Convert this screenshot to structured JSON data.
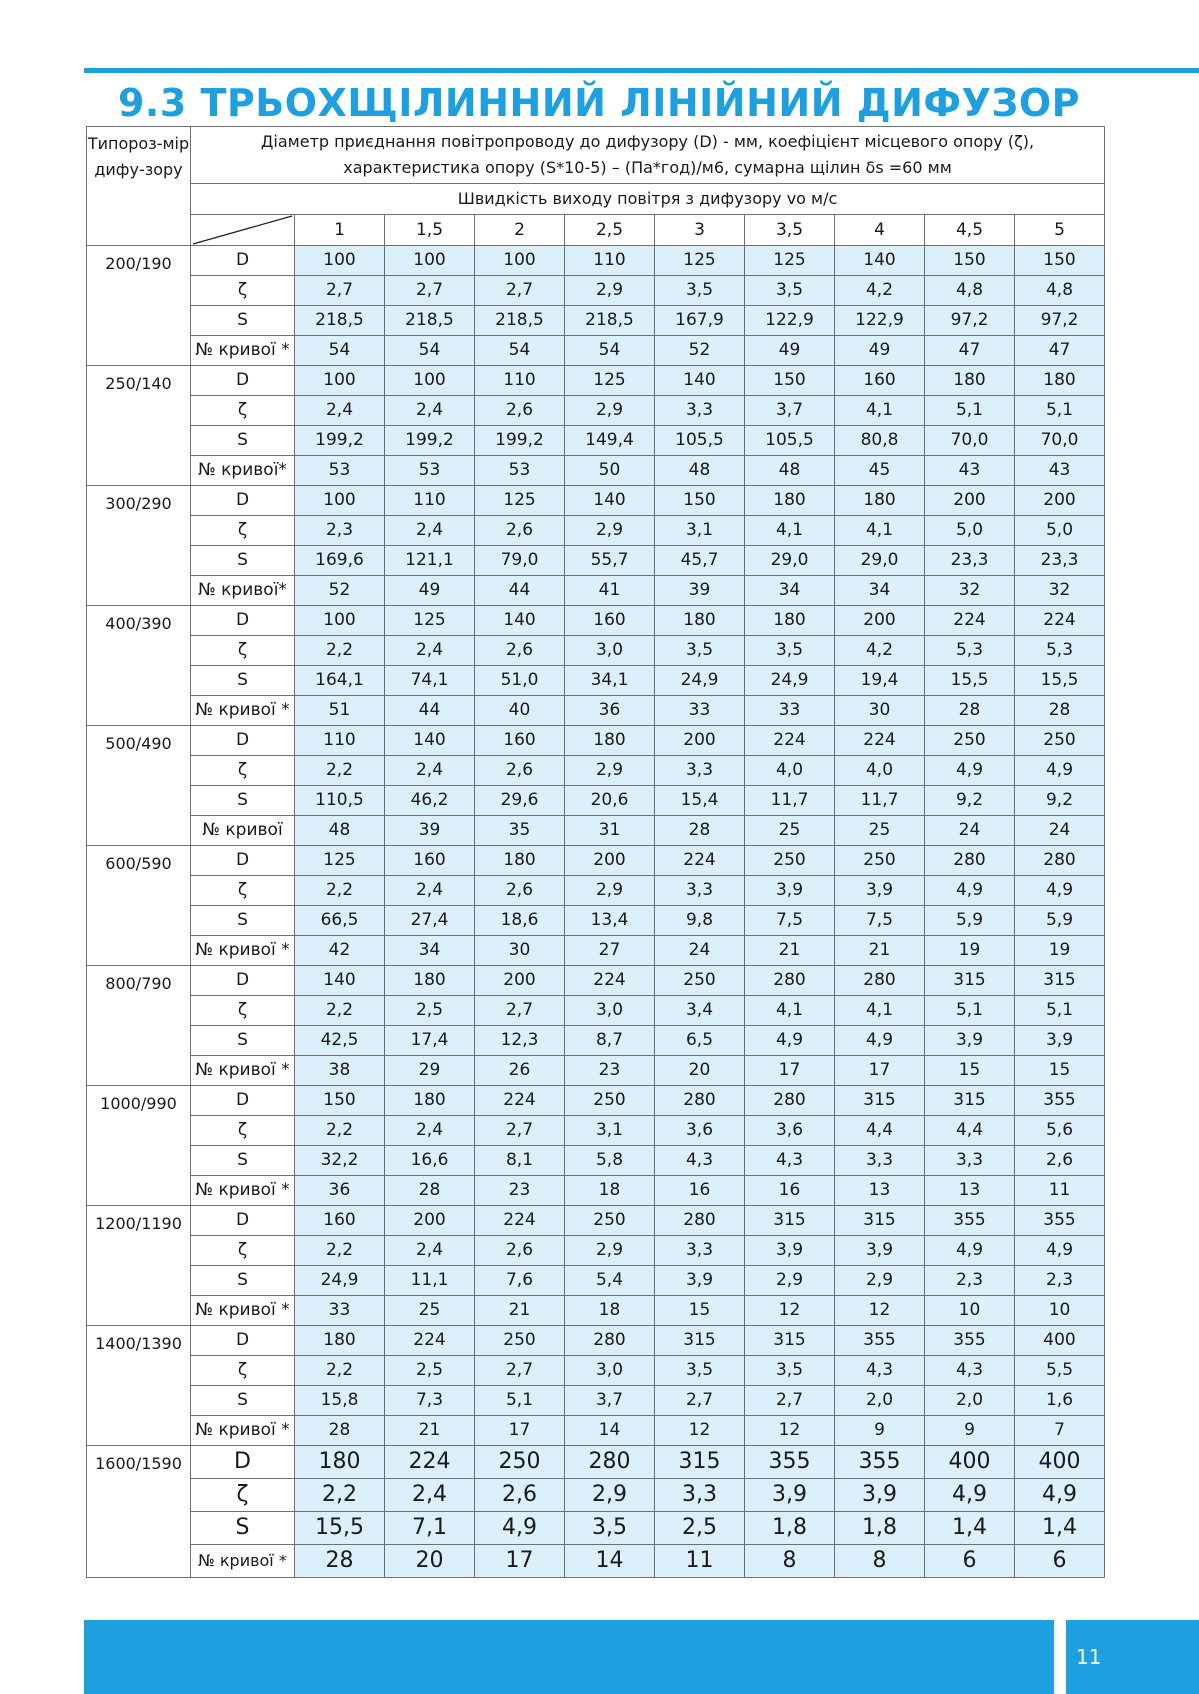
{
  "page": {
    "title": "9.3 ТРЬОХЩІЛИННИЙ ЛІНІЙНИЙ ДИФУЗОР",
    "page_number": "11",
    "accent_color": "#1ea0e0",
    "cell_fill": "#dcf0fb"
  },
  "table": {
    "type_header": "Типороз-мір дифу-зору",
    "description_line1": "Діаметр приєднання повітропроводу до дифузору (D) - мм, коефіцієнт місцевого опору (ζ),",
    "description_line2": "характеристика опору (S*10-5) – (Па*год)/м6, сумарна щілин δs =60 мм",
    "speed_header": "Швидкість виходу повітря з дифузору vo м/с",
    "speeds": [
      "1",
      "1,5",
      "2",
      "2,5",
      "3",
      "3,5",
      "4",
      "4,5",
      "5"
    ],
    "groups": [
      {
        "type": "200/190",
        "rows": [
          {
            "param": "D",
            "values": [
              "100",
              "100",
              "100",
              "110",
              "125",
              "125",
              "140",
              "150",
              "150"
            ]
          },
          {
            "param": "ζ",
            "values": [
              "2,7",
              "2,7",
              "2,7",
              "2,9",
              "3,5",
              "3,5",
              "4,2",
              "4,8",
              "4,8"
            ]
          },
          {
            "param": "S",
            "values": [
              "218,5",
              "218,5",
              "218,5",
              "218,5",
              "167,9",
              "122,9",
              "122,9",
              "97,2",
              "97,2"
            ]
          },
          {
            "param": "№ кривої *",
            "values": [
              "54",
              "54",
              "54",
              "54",
              "52",
              "49",
              "49",
              "47",
              "47"
            ]
          }
        ]
      },
      {
        "type": "250/140",
        "rows": [
          {
            "param": "D",
            "values": [
              "100",
              "100",
              "110",
              "125",
              "140",
              "150",
              "160",
              "180",
              "180"
            ]
          },
          {
            "param": "ζ",
            "values": [
              "2,4",
              "2,4",
              "2,6",
              "2,9",
              "3,3",
              "3,7",
              "4,1",
              "5,1",
              "5,1"
            ]
          },
          {
            "param": "S",
            "values": [
              "199,2",
              "199,2",
              "199,2",
              "149,4",
              "105,5",
              "105,5",
              "80,8",
              "70,0",
              "70,0"
            ]
          },
          {
            "param": "№ кривої*",
            "values": [
              "53",
              "53",
              "53",
              "50",
              "48",
              "48",
              "45",
              "43",
              "43"
            ]
          }
        ]
      },
      {
        "type": "300/290",
        "rows": [
          {
            "param": "D",
            "values": [
              "100",
              "110",
              "125",
              "140",
              "150",
              "180",
              "180",
              "200",
              "200"
            ]
          },
          {
            "param": "ζ",
            "values": [
              "2,3",
              "2,4",
              "2,6",
              "2,9",
              "3,1",
              "4,1",
              "4,1",
              "5,0",
              "5,0"
            ]
          },
          {
            "param": "S",
            "values": [
              "169,6",
              "121,1",
              "79,0",
              "55,7",
              "45,7",
              "29,0",
              "29,0",
              "23,3",
              "23,3"
            ]
          },
          {
            "param": "№ кривої*",
            "values": [
              "52",
              "49",
              "44",
              "41",
              "39",
              "34",
              "34",
              "32",
              "32"
            ]
          }
        ]
      },
      {
        "type": "400/390",
        "rows": [
          {
            "param": "D",
            "values": [
              "100",
              "125",
              "140",
              "160",
              "180",
              "180",
              "200",
              "224",
              "224"
            ]
          },
          {
            "param": "ζ",
            "values": [
              "2,2",
              "2,4",
              "2,6",
              "3,0",
              "3,5",
              "3,5",
              "4,2",
              "5,3",
              "5,3"
            ]
          },
          {
            "param": "S",
            "values": [
              "164,1",
              "74,1",
              "51,0",
              "34,1",
              "24,9",
              "24,9",
              "19,4",
              "15,5",
              "15,5"
            ]
          },
          {
            "param": "№ кривої *",
            "values": [
              "51",
              "44",
              "40",
              "36",
              "33",
              "33",
              "30",
              "28",
              "28"
            ]
          }
        ]
      },
      {
        "type": "500/490",
        "rows": [
          {
            "param": "D",
            "values": [
              "110",
              "140",
              "160",
              "180",
              "200",
              "224",
              "224",
              "250",
              "250"
            ]
          },
          {
            "param": "ζ",
            "values": [
              "2,2",
              "2,4",
              "2,6",
              "2,9",
              "3,3",
              "4,0",
              "4,0",
              "4,9",
              "4,9"
            ]
          },
          {
            "param": "S",
            "values": [
              "110,5",
              "46,2",
              "29,6",
              "20,6",
              "15,4",
              "11,7",
              "11,7",
              "9,2",
              "9,2"
            ]
          },
          {
            "param": "№ кривої",
            "values": [
              "48",
              "39",
              "35",
              "31",
              "28",
              "25",
              "25",
              "24",
              "24"
            ]
          }
        ]
      },
      {
        "type": "600/590",
        "rows": [
          {
            "param": "D",
            "values": [
              "125",
              "160",
              "180",
              "200",
              "224",
              "250",
              "250",
              "280",
              "280"
            ]
          },
          {
            "param": "ζ",
            "values": [
              "2,2",
              "2,4",
              "2,6",
              "2,9",
              "3,3",
              "3,9",
              "3,9",
              "4,9",
              "4,9"
            ]
          },
          {
            "param": "S",
            "values": [
              "66,5",
              "27,4",
              "18,6",
              "13,4",
              "9,8",
              "7,5",
              "7,5",
              "5,9",
              "5,9"
            ]
          },
          {
            "param": "№ кривої *",
            "values": [
              "42",
              "34",
              "30",
              "27",
              "24",
              "21",
              "21",
              "19",
              "19"
            ]
          }
        ]
      },
      {
        "type": "800/790",
        "rows": [
          {
            "param": "D",
            "values": [
              "140",
              "180",
              "200",
              "224",
              "250",
              "280",
              "280",
              "315",
              "315"
            ]
          },
          {
            "param": "ζ",
            "values": [
              "2,2",
              "2,5",
              "2,7",
              "3,0",
              "3,4",
              "4,1",
              "4,1",
              "5,1",
              "5,1"
            ]
          },
          {
            "param": "S",
            "values": [
              "42,5",
              "17,4",
              "12,3",
              "8,7",
              "6,5",
              "4,9",
              "4,9",
              "3,9",
              "3,9"
            ]
          },
          {
            "param": "№ кривої *",
            "values": [
              "38",
              "29",
              "26",
              "23",
              "20",
              "17",
              "17",
              "15",
              "15"
            ]
          }
        ]
      },
      {
        "type": "1000/990",
        "rows": [
          {
            "param": "D",
            "values": [
              "150",
              "180",
              "224",
              "250",
              "280",
              "280",
              "315",
              "315",
              "355"
            ]
          },
          {
            "param": "ζ",
            "values": [
              "2,2",
              "2,4",
              "2,7",
              "3,1",
              "3,6",
              "3,6",
              "4,4",
              "4,4",
              "5,6"
            ]
          },
          {
            "param": "S",
            "values": [
              "32,2",
              "16,6",
              "8,1",
              "5,8",
              "4,3",
              "4,3",
              "3,3",
              "3,3",
              "2,6"
            ]
          },
          {
            "param": "№ кривої *",
            "values": [
              "36",
              "28",
              "23",
              "18",
              "16",
              "16",
              "13",
              "13",
              "11"
            ]
          }
        ]
      },
      {
        "type": "1200/1190",
        "rows": [
          {
            "param": "D",
            "values": [
              "160",
              "200",
              "224",
              "250",
              "280",
              "315",
              "315",
              "355",
              "355"
            ]
          },
          {
            "param": "ζ",
            "values": [
              "2,2",
              "2,4",
              "2,6",
              "2,9",
              "3,3",
              "3,9",
              "3,9",
              "4,9",
              "4,9"
            ]
          },
          {
            "param": "S",
            "values": [
              "24,9",
              "11,1",
              "7,6",
              "5,4",
              "3,9",
              "2,9",
              "2,9",
              "2,3",
              "2,3"
            ]
          },
          {
            "param": "№ кривої *",
            "values": [
              "33",
              "25",
              "21",
              "18",
              "15",
              "12",
              "12",
              "10",
              "10"
            ]
          }
        ]
      },
      {
        "type": "1400/1390",
        "rows": [
          {
            "param": "D",
            "values": [
              "180",
              "224",
              "250",
              "280",
              "315",
              "315",
              "355",
              "355",
              "400"
            ]
          },
          {
            "param": "ζ",
            "values": [
              "2,2",
              "2,5",
              "2,7",
              "3,0",
              "3,5",
              "3,5",
              "4,3",
              "4,3",
              "5,5"
            ]
          },
          {
            "param": "S",
            "values": [
              "15,8",
              "7,3",
              "5,1",
              "3,7",
              "2,7",
              "2,7",
              "2,0",
              "2,0",
              "1,6"
            ]
          },
          {
            "param": "№ кривої *",
            "values": [
              "28",
              "21",
              "17",
              "14",
              "12",
              "12",
              "9",
              "9",
              "7"
            ]
          }
        ]
      },
      {
        "type": "1600/1590",
        "big": true,
        "rows": [
          {
            "param": "D",
            "values": [
              "180",
              "224",
              "250",
              "280",
              "315",
              "355",
              "355",
              "400",
              "400"
            ]
          },
          {
            "param": "ζ",
            "values": [
              "2,2",
              "2,4",
              "2,6",
              "2,9",
              "3,3",
              "3,9",
              "3,9",
              "4,9",
              "4,9"
            ]
          },
          {
            "param": "S",
            "values": [
              "15,5",
              "7,1",
              "4,9",
              "3,5",
              "2,5",
              "1,8",
              "1,8",
              "1,4",
              "1,4"
            ]
          },
          {
            "param": "№ кривої *",
            "values": [
              "28",
              "20",
              "17",
              "14",
              "11",
              "8",
              "8",
              "6",
              "6"
            ]
          }
        ]
      }
    ]
  }
}
